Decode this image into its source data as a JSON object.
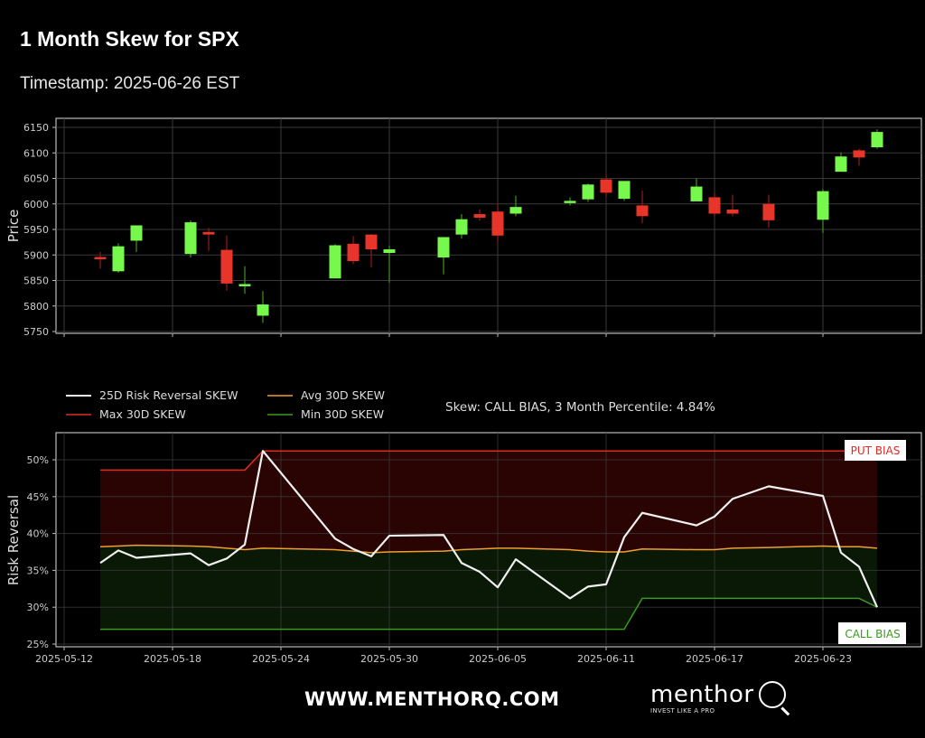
{
  "header": {
    "title": "1 Month Skew for SPX",
    "timestamp": "Timestamp: 2025-06-26 EST"
  },
  "footer": {
    "url": "WWW.MENTHORQ.COM",
    "logo_word": "menthor",
    "logo_tagline": "INVEST LIKE A PRO"
  },
  "colors": {
    "up": "#77f84c",
    "down": "#e8352a",
    "skew": "#f0f0f0",
    "avg": "#f0a030",
    "max": "#e02b20",
    "min": "#3a9a20",
    "put_fill": "#2a0303",
    "call_fill": "#091906",
    "grid": "#3a3a3a",
    "axis": "#bbbbbb"
  },
  "chart_data": [
    {
      "type": "candlestick",
      "title": "",
      "xlabel": "",
      "ylabel": "Price",
      "ylim": [
        5750,
        6150
      ],
      "yticks": [
        5750,
        5800,
        5850,
        5900,
        5950,
        6000,
        6050,
        6100,
        6150
      ],
      "grid": true,
      "candles": [
        {
          "date": "2025-05-14",
          "open": 5896,
          "high": 5906,
          "low": 5873,
          "close": 5892
        },
        {
          "date": "2025-05-15",
          "open": 5868,
          "high": 5923,
          "low": 5865,
          "close": 5917
        },
        {
          "date": "2025-05-16",
          "open": 5928,
          "high": 5958,
          "low": 5906,
          "close": 5958
        },
        {
          "date": "2025-05-19",
          "open": 5902,
          "high": 5968,
          "low": 5895,
          "close": 5964
        },
        {
          "date": "2025-05-20",
          "open": 5945,
          "high": 5953,
          "low": 5908,
          "close": 5940
        },
        {
          "date": "2025-05-21",
          "open": 5910,
          "high": 5938,
          "low": 5830,
          "close": 5844
        },
        {
          "date": "2025-05-22",
          "open": 5841,
          "high": 5878,
          "low": 5824,
          "close": 5843
        },
        {
          "date": "2025-05-23",
          "open": 5781,
          "high": 5829,
          "low": 5767,
          "close": 5803
        },
        {
          "date": "2025-05-27",
          "open": 5854,
          "high": 5921,
          "low": 5854,
          "close": 5919
        },
        {
          "date": "2025-05-28",
          "open": 5922,
          "high": 5937,
          "low": 5882,
          "close": 5888
        },
        {
          "date": "2025-05-29",
          "open": 5940,
          "high": 5941,
          "low": 5876,
          "close": 5911
        },
        {
          "date": "2025-05-30",
          "open": 5904,
          "high": 5918,
          "low": 5846,
          "close": 5911
        },
        {
          "date": "2025-06-02",
          "open": 5895,
          "high": 5935,
          "low": 5862,
          "close": 5935
        },
        {
          "date": "2025-06-03",
          "open": 5940,
          "high": 5980,
          "low": 5932,
          "close": 5970
        },
        {
          "date": "2025-06-04",
          "open": 5980,
          "high": 5989,
          "low": 5967,
          "close": 5973
        },
        {
          "date": "2025-06-05",
          "open": 5985,
          "high": 6000,
          "low": 5925,
          "close": 5938
        },
        {
          "date": "2025-06-06",
          "open": 5981,
          "high": 6016,
          "low": 5976,
          "close": 5994
        },
        {
          "date": "2025-06-09",
          "open": 6004,
          "high": 6013,
          "low": 5997,
          "close": 6006
        },
        {
          "date": "2025-06-10",
          "open": 6009,
          "high": 6040,
          "low": 6004,
          "close": 6038
        },
        {
          "date": "2025-06-11",
          "open": 6048,
          "high": 6057,
          "low": 6014,
          "close": 6022
        },
        {
          "date": "2025-06-12",
          "open": 6010,
          "high": 6045,
          "low": 6006,
          "close": 6045
        },
        {
          "date": "2025-06-13",
          "open": 5997,
          "high": 6026,
          "low": 5962,
          "close": 5976
        },
        {
          "date": "2025-06-16",
          "open": 6005,
          "high": 6050,
          "low": 6005,
          "close": 6034
        },
        {
          "date": "2025-06-17",
          "open": 6013,
          "high": 6022,
          "low": 5976,
          "close": 5981
        },
        {
          "date": "2025-06-18",
          "open": 5989,
          "high": 6018,
          "low": 5976,
          "close": 5981
        },
        {
          "date": "2025-06-20",
          "open": 6000,
          "high": 6018,
          "low": 5953,
          "close": 5968
        },
        {
          "date": "2025-06-23",
          "open": 5969,
          "high": 6029,
          "low": 5943,
          "close": 6025
        },
        {
          "date": "2025-06-24",
          "open": 6063,
          "high": 6101,
          "low": 6063,
          "close": 6093
        },
        {
          "date": "2025-06-25",
          "open": 6105,
          "high": 6108,
          "low": 6075,
          "close": 6091
        },
        {
          "date": "2025-06-26",
          "open": 6111,
          "high": 6146,
          "low": 6108,
          "close": 6141
        }
      ]
    },
    {
      "type": "line",
      "title": "",
      "xlabel": "",
      "ylabel": "Risk Reversal",
      "ylim": [
        25,
        52.5
      ],
      "yticks": [
        "25%",
        "30%",
        "35%",
        "40%",
        "45%",
        "50%"
      ],
      "ytick_values": [
        25,
        30,
        35,
        40,
        45,
        50
      ],
      "xticks": [
        "2025-05-12",
        "2025-05-18",
        "2025-05-24",
        "2025-05-30",
        "2025-06-05",
        "2025-06-11",
        "2025-06-17",
        "2025-06-23"
      ],
      "grid": true,
      "legend_position": "upper-left-outside",
      "annotation": "Skew: CALL BIAS, 3 Month Percentile: 4.84%",
      "labels": {
        "put_bias": "PUT BIAS",
        "call_bias": "CALL BIAS"
      },
      "x": [
        "2025-05-14",
        "2025-05-15",
        "2025-05-16",
        "2025-05-19",
        "2025-05-20",
        "2025-05-21",
        "2025-05-22",
        "2025-05-23",
        "2025-05-27",
        "2025-05-28",
        "2025-05-29",
        "2025-05-30",
        "2025-06-02",
        "2025-06-03",
        "2025-06-04",
        "2025-06-05",
        "2025-06-06",
        "2025-06-09",
        "2025-06-10",
        "2025-06-11",
        "2025-06-12",
        "2025-06-13",
        "2025-06-16",
        "2025-06-17",
        "2025-06-18",
        "2025-06-20",
        "2025-06-23",
        "2025-06-24",
        "2025-06-25",
        "2025-06-26"
      ],
      "series": [
        {
          "name": "25D Risk Reversal SKEW",
          "key": "skew",
          "values": [
            36.0,
            37.7,
            36.7,
            37.3,
            35.7,
            36.6,
            38.5,
            51.2,
            39.3,
            37.9,
            36.9,
            39.7,
            39.8,
            36.0,
            34.8,
            32.7,
            36.5,
            31.2,
            32.8,
            33.1,
            39.5,
            42.8,
            41.1,
            42.3,
            44.7,
            46.4,
            45.1,
            37.4,
            35.5,
            30.0
          ]
        },
        {
          "name": "Max 30D SKEW",
          "key": "max",
          "values": [
            48.6,
            48.6,
            48.6,
            48.6,
            48.6,
            48.6,
            48.6,
            51.2,
            51.2,
            51.2,
            51.2,
            51.2,
            51.2,
            51.2,
            51.2,
            51.2,
            51.2,
            51.2,
            51.2,
            51.2,
            51.2,
            51.2,
            51.2,
            51.2,
            51.2,
            51.2,
            51.2,
            51.2,
            51.2,
            51.2
          ]
        },
        {
          "name": "Avg 30D SKEW",
          "key": "avg",
          "values": [
            38.2,
            38.3,
            38.4,
            38.3,
            38.2,
            38.0,
            37.8,
            38.0,
            37.8,
            37.6,
            37.4,
            37.5,
            37.6,
            37.8,
            37.9,
            38.0,
            38.0,
            37.8,
            37.6,
            37.5,
            37.5,
            37.9,
            37.8,
            37.8,
            38.0,
            38.1,
            38.3,
            38.2,
            38.2,
            38.0
          ]
        },
        {
          "name": "Min 30D SKEW",
          "key": "min",
          "values": [
            27.0,
            27.0,
            27.0,
            27.0,
            27.0,
            27.0,
            27.0,
            27.0,
            27.0,
            27.0,
            27.0,
            27.0,
            27.0,
            27.0,
            27.0,
            27.0,
            27.0,
            27.0,
            27.0,
            27.0,
            27.0,
            31.2,
            31.2,
            31.2,
            31.2,
            31.2,
            31.2,
            31.2,
            31.2,
            30.0
          ]
        }
      ]
    }
  ]
}
